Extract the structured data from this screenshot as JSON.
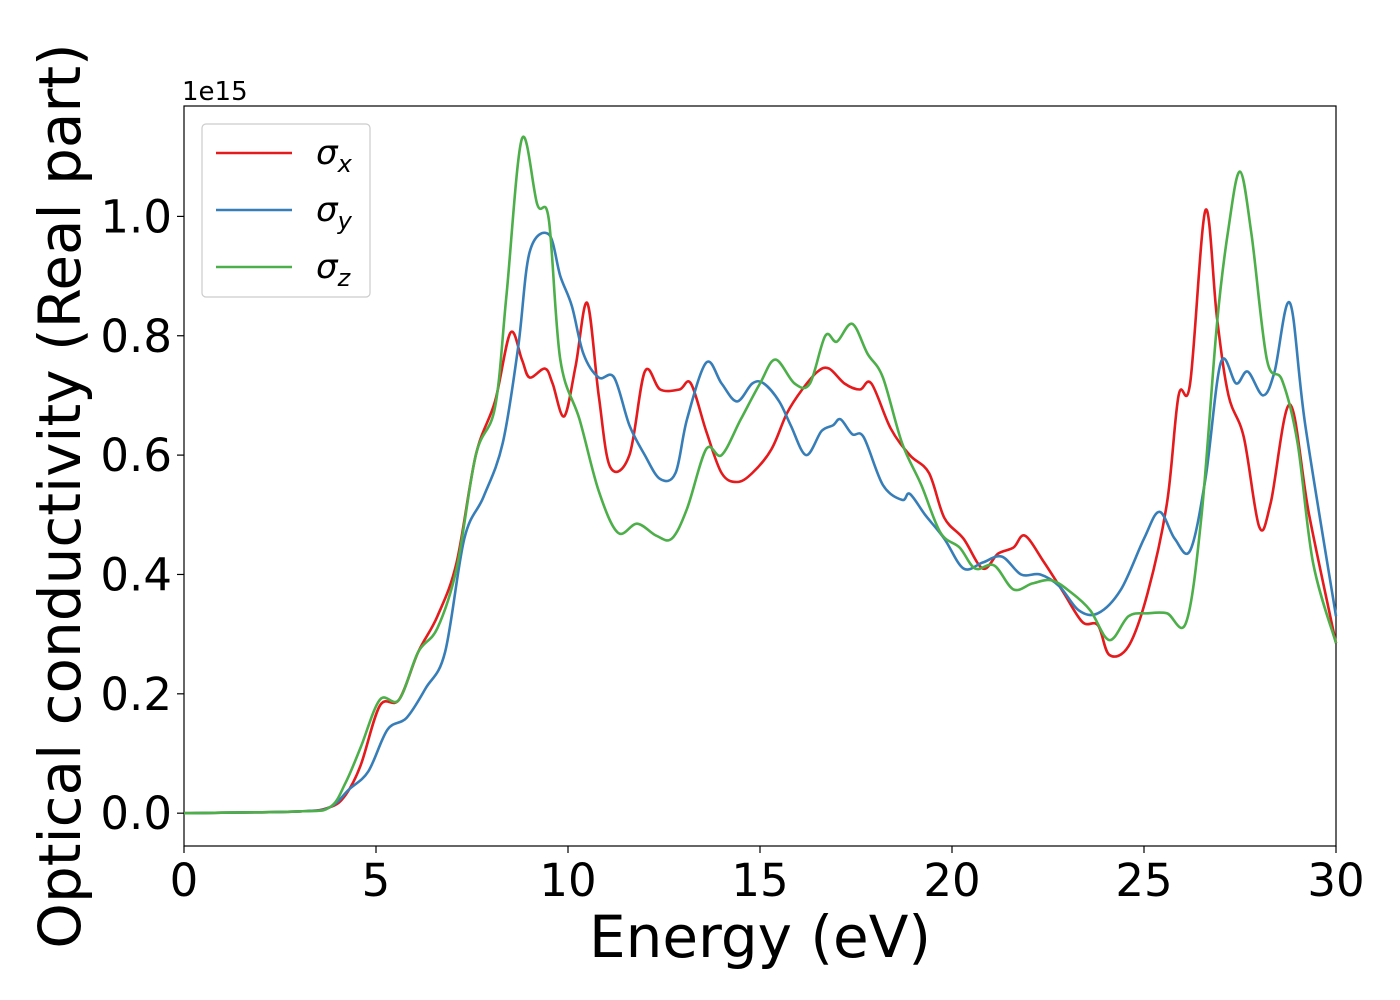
{
  "chart_data": {
    "type": "line",
    "xlabel": "Energy (eV)",
    "ylabel": "Optical conductivity (Real part)",
    "y_offset_label": "1e15",
    "xlim": [
      0,
      30
    ],
    "ylim": [
      -0.055,
      1.185
    ],
    "xticks": [
      0,
      5,
      10,
      15,
      20,
      25,
      30
    ],
    "xtick_labels": [
      "0",
      "5",
      "10",
      "15",
      "20",
      "25",
      "30"
    ],
    "yticks": [
      0.0,
      0.2,
      0.4,
      0.6,
      0.8,
      1.0
    ],
    "ytick_labels": [
      "0.0",
      "0.2",
      "0.4",
      "0.6",
      "0.8",
      "1.0"
    ],
    "grid": false,
    "legend_position": "top-left",
    "series": [
      {
        "name": "σx",
        "symbol": "σ",
        "subscript": "x",
        "color": "#e41a1c",
        "points": [
          [
            0,
            0
          ],
          [
            3,
            0.003
          ],
          [
            3.8,
            0.01
          ],
          [
            4.2,
            0.03
          ],
          [
            4.6,
            0.08
          ],
          [
            5.1,
            0.18
          ],
          [
            5.6,
            0.19
          ],
          [
            6.1,
            0.27
          ],
          [
            6.6,
            0.33
          ],
          [
            7.1,
            0.42
          ],
          [
            7.6,
            0.6
          ],
          [
            8.1,
            0.69
          ],
          [
            8.5,
            0.805
          ],
          [
            8.8,
            0.76
          ],
          [
            9.0,
            0.73
          ],
          [
            9.4,
            0.745
          ],
          [
            9.6,
            0.72
          ],
          [
            9.9,
            0.665
          ],
          [
            10.2,
            0.75
          ],
          [
            10.5,
            0.855
          ],
          [
            10.8,
            0.7
          ],
          [
            11.1,
            0.58
          ],
          [
            11.6,
            0.6
          ],
          [
            12.0,
            0.74
          ],
          [
            12.4,
            0.71
          ],
          [
            12.9,
            0.71
          ],
          [
            13.2,
            0.72
          ],
          [
            13.6,
            0.64
          ],
          [
            14.0,
            0.57
          ],
          [
            14.4,
            0.555
          ],
          [
            14.8,
            0.57
          ],
          [
            15.3,
            0.61
          ],
          [
            15.7,
            0.67
          ],
          [
            16.1,
            0.71
          ],
          [
            16.5,
            0.74
          ],
          [
            16.8,
            0.745
          ],
          [
            17.2,
            0.72
          ],
          [
            17.6,
            0.71
          ],
          [
            17.9,
            0.72
          ],
          [
            18.4,
            0.645
          ],
          [
            18.9,
            0.6
          ],
          [
            19.4,
            0.57
          ],
          [
            19.8,
            0.495
          ],
          [
            20.3,
            0.46
          ],
          [
            20.8,
            0.41
          ],
          [
            21.2,
            0.435
          ],
          [
            21.6,
            0.445
          ],
          [
            21.9,
            0.465
          ],
          [
            22.4,
            0.42
          ],
          [
            22.9,
            0.37
          ],
          [
            23.4,
            0.32
          ],
          [
            23.8,
            0.315
          ],
          [
            24.1,
            0.265
          ],
          [
            24.6,
            0.28
          ],
          [
            25.1,
            0.37
          ],
          [
            25.6,
            0.52
          ],
          [
            25.9,
            0.7
          ],
          [
            26.2,
            0.72
          ],
          [
            26.6,
            1.01
          ],
          [
            26.9,
            0.83
          ],
          [
            27.2,
            0.7
          ],
          [
            27.6,
            0.63
          ],
          [
            28.0,
            0.48
          ],
          [
            28.3,
            0.52
          ],
          [
            28.8,
            0.685
          ],
          [
            29.3,
            0.5
          ],
          [
            30,
            0.285
          ]
        ]
      },
      {
        "name": "σy",
        "symbol": "σ",
        "subscript": "y",
        "color": "#377eb8",
        "points": [
          [
            0,
            0
          ],
          [
            3,
            0.003
          ],
          [
            3.8,
            0.01
          ],
          [
            4.3,
            0.04
          ],
          [
            4.8,
            0.07
          ],
          [
            5.3,
            0.14
          ],
          [
            5.8,
            0.16
          ],
          [
            6.3,
            0.21
          ],
          [
            6.8,
            0.27
          ],
          [
            7.3,
            0.46
          ],
          [
            7.8,
            0.53
          ],
          [
            8.3,
            0.62
          ],
          [
            8.7,
            0.78
          ],
          [
            9.0,
            0.94
          ],
          [
            9.5,
            0.97
          ],
          [
            9.8,
            0.9
          ],
          [
            10.1,
            0.85
          ],
          [
            10.4,
            0.77
          ],
          [
            10.8,
            0.73
          ],
          [
            11.2,
            0.73
          ],
          [
            11.6,
            0.65
          ],
          [
            12.0,
            0.6
          ],
          [
            12.4,
            0.56
          ],
          [
            12.8,
            0.57
          ],
          [
            13.1,
            0.66
          ],
          [
            13.6,
            0.755
          ],
          [
            14.0,
            0.72
          ],
          [
            14.4,
            0.69
          ],
          [
            14.8,
            0.72
          ],
          [
            15.1,
            0.72
          ],
          [
            15.5,
            0.69
          ],
          [
            15.8,
            0.65
          ],
          [
            16.2,
            0.6
          ],
          [
            16.6,
            0.64
          ],
          [
            16.9,
            0.65
          ],
          [
            17.1,
            0.66
          ],
          [
            17.4,
            0.635
          ],
          [
            17.7,
            0.63
          ],
          [
            18.2,
            0.55
          ],
          [
            18.7,
            0.525
          ],
          [
            18.9,
            0.535
          ],
          [
            19.3,
            0.5
          ],
          [
            19.8,
            0.46
          ],
          [
            20.3,
            0.41
          ],
          [
            20.8,
            0.42
          ],
          [
            21.3,
            0.43
          ],
          [
            21.8,
            0.4
          ],
          [
            22.3,
            0.4
          ],
          [
            22.8,
            0.38
          ],
          [
            23.3,
            0.34
          ],
          [
            23.8,
            0.335
          ],
          [
            24.4,
            0.375
          ],
          [
            25.0,
            0.46
          ],
          [
            25.4,
            0.505
          ],
          [
            25.8,
            0.46
          ],
          [
            26.2,
            0.44
          ],
          [
            26.6,
            0.56
          ],
          [
            27.0,
            0.755
          ],
          [
            27.4,
            0.72
          ],
          [
            27.7,
            0.74
          ],
          [
            28.1,
            0.7
          ],
          [
            28.4,
            0.74
          ],
          [
            28.8,
            0.855
          ],
          [
            29.2,
            0.65
          ],
          [
            30,
            0.33
          ]
        ]
      },
      {
        "name": "σz",
        "symbol": "σ",
        "subscript": "z",
        "color": "#4daf4a",
        "points": [
          [
            0,
            0
          ],
          [
            3,
            0.003
          ],
          [
            3.8,
            0.01
          ],
          [
            4.2,
            0.05
          ],
          [
            4.6,
            0.11
          ],
          [
            5.1,
            0.19
          ],
          [
            5.6,
            0.19
          ],
          [
            6.1,
            0.27
          ],
          [
            6.6,
            0.31
          ],
          [
            7.1,
            0.41
          ],
          [
            7.6,
            0.6
          ],
          [
            8.1,
            0.68
          ],
          [
            8.4,
            0.87
          ],
          [
            8.8,
            1.13
          ],
          [
            9.2,
            1.02
          ],
          [
            9.5,
            0.995
          ],
          [
            9.8,
            0.76
          ],
          [
            10.3,
            0.66
          ],
          [
            10.8,
            0.54
          ],
          [
            11.3,
            0.47
          ],
          [
            11.8,
            0.485
          ],
          [
            12.3,
            0.465
          ],
          [
            12.7,
            0.46
          ],
          [
            13.1,
            0.51
          ],
          [
            13.6,
            0.61
          ],
          [
            14.0,
            0.6
          ],
          [
            14.5,
            0.66
          ],
          [
            15.0,
            0.72
          ],
          [
            15.4,
            0.76
          ],
          [
            15.9,
            0.72
          ],
          [
            16.3,
            0.72
          ],
          [
            16.7,
            0.8
          ],
          [
            17.0,
            0.79
          ],
          [
            17.4,
            0.82
          ],
          [
            17.8,
            0.77
          ],
          [
            18.2,
            0.73
          ],
          [
            18.7,
            0.62
          ],
          [
            19.2,
            0.55
          ],
          [
            19.7,
            0.47
          ],
          [
            20.2,
            0.445
          ],
          [
            20.6,
            0.41
          ],
          [
            21.1,
            0.415
          ],
          [
            21.6,
            0.375
          ],
          [
            22.1,
            0.385
          ],
          [
            22.6,
            0.39
          ],
          [
            23.1,
            0.37
          ],
          [
            23.6,
            0.34
          ],
          [
            24.1,
            0.29
          ],
          [
            24.6,
            0.33
          ],
          [
            25.1,
            0.335
          ],
          [
            25.6,
            0.335
          ],
          [
            26.1,
            0.32
          ],
          [
            26.5,
            0.5
          ],
          [
            26.9,
            0.82
          ],
          [
            27.2,
            0.98
          ],
          [
            27.5,
            1.075
          ],
          [
            27.8,
            0.97
          ],
          [
            28.2,
            0.76
          ],
          [
            28.6,
            0.725
          ],
          [
            29.0,
            0.62
          ],
          [
            29.4,
            0.42
          ],
          [
            30,
            0.285
          ]
        ]
      }
    ]
  }
}
